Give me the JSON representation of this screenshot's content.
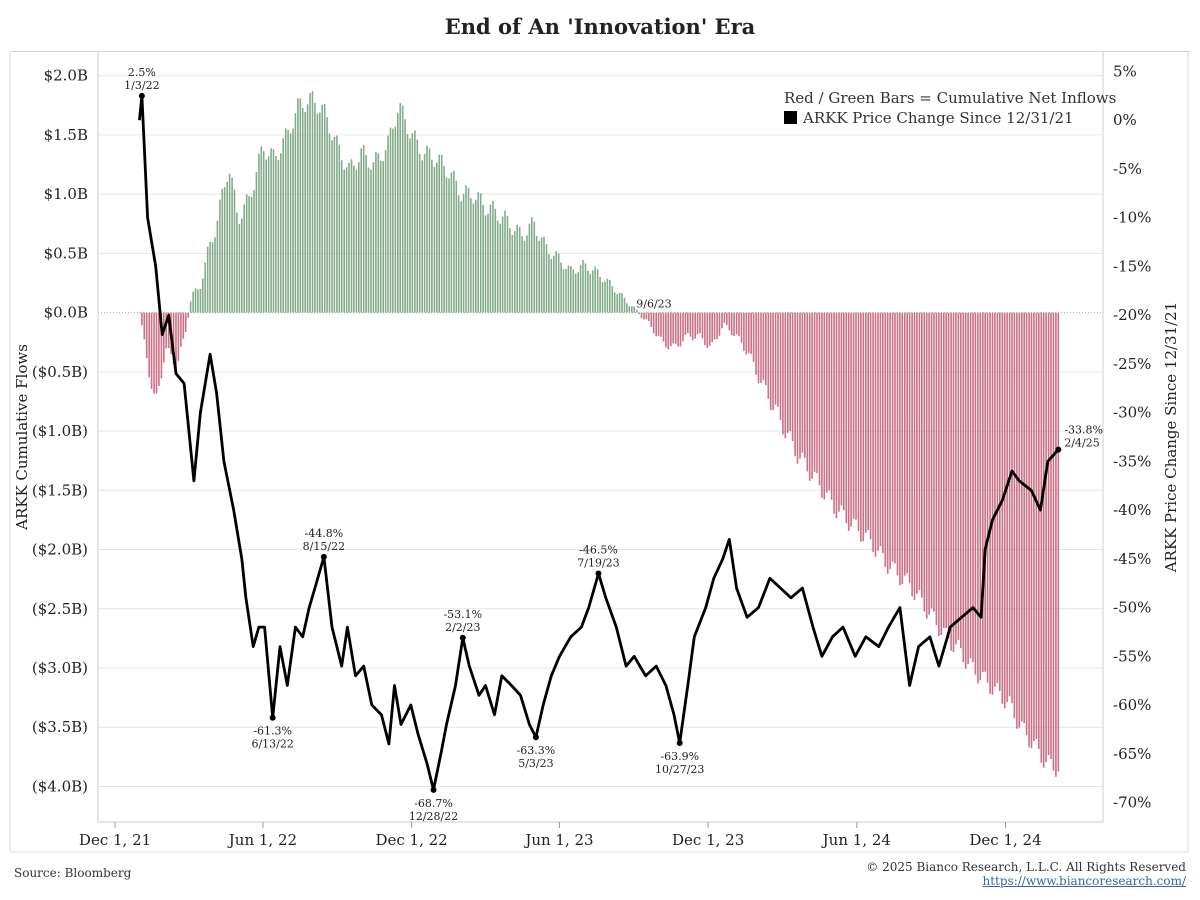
{
  "title": "End of An 'Innovation' Era",
  "footer": {
    "source": "Source: Bloomberg",
    "copyright": "© 2025 Bianco Research, L.L.C. All Rights Reserved",
    "url": "https://www.biancoresearch.com/"
  },
  "legend": {
    "bars": "Red / Green Bars = Cumulative Net Inflows",
    "line": "ARKK Price Change Since 12/31/21"
  },
  "colors": {
    "inflow": "#6f9e78",
    "outflow": "#c2566f",
    "price_line": "#000000",
    "grid": "#e6e6e6"
  },
  "chart_data": {
    "type": "bar+line",
    "title": "End of An 'Innovation' Era",
    "x_ticks": [
      "Dec 1, 21",
      "Jun 1, 22",
      "Dec 1, 22",
      "Jun 1, 23",
      "Dec 1, 23",
      "Jun 1, 24",
      "Dec 1, 24"
    ],
    "x_tick_dates": [
      "2021-12-01",
      "2022-06-01",
      "2022-12-01",
      "2023-06-01",
      "2023-12-01",
      "2024-06-01",
      "2024-12-01"
    ],
    "xlim": [
      "2021-11-10",
      "2025-03-31"
    ],
    "y_left": {
      "label": "ARKK Cumulative Flows",
      "unit": "USD billions",
      "ticks": [
        "$2.0B",
        "$1.5B",
        "$1.0B",
        "$0.5B",
        "$0.0B",
        "($0.5B)",
        "($1.0B)",
        "($1.5B)",
        "($2.0B)",
        "($2.5B)",
        "($3.0B)",
        "($3.5B)",
        "($4.0B)"
      ],
      "tick_values": [
        2.0,
        1.5,
        1.0,
        0.5,
        0.0,
        -0.5,
        -1.0,
        -1.5,
        -2.0,
        -2.5,
        -3.0,
        -3.5,
        -4.0
      ],
      "ylim": [
        -4.3,
        2.2
      ]
    },
    "y_right": {
      "label": "ARKK Price Change Since 12/31/21",
      "unit": "percent",
      "ticks": [
        "5%",
        "0%",
        "-5%",
        "-10%",
        "-15%",
        "-20%",
        "-25%",
        "-30%",
        "-35%",
        "-40%",
        "-45%",
        "-50%",
        "-55%",
        "-60%",
        "-65%",
        "-70%"
      ],
      "tick_values": [
        5,
        0,
        -5,
        -10,
        -15,
        -20,
        -25,
        -30,
        -35,
        -40,
        -45,
        -50,
        -55,
        -60,
        -65,
        -70
      ],
      "ylim": [
        -72,
        7
      ]
    },
    "series": [
      {
        "name": "Cumulative Net Inflows",
        "kind": "bar",
        "unit": "USD billions",
        "points": [
          [
            "2021-12-31",
            0.0
          ],
          [
            "2022-01-07",
            -0.3
          ],
          [
            "2022-01-20",
            -0.8
          ],
          [
            "2022-02-01",
            -0.3
          ],
          [
            "2022-02-15",
            -0.45
          ],
          [
            "2022-02-25",
            -0.2
          ],
          [
            "2022-03-05",
            0.15
          ],
          [
            "2022-03-15",
            0.2
          ],
          [
            "2022-03-25",
            0.5
          ],
          [
            "2022-04-05",
            0.75
          ],
          [
            "2022-04-20",
            1.25
          ],
          [
            "2022-05-01",
            0.8
          ],
          [
            "2022-05-15",
            0.95
          ],
          [
            "2022-06-01",
            1.4
          ],
          [
            "2022-06-15",
            1.3
          ],
          [
            "2022-07-01",
            1.5
          ],
          [
            "2022-07-15",
            1.75
          ],
          [
            "2022-08-01",
            1.8
          ],
          [
            "2022-08-15",
            1.7
          ],
          [
            "2022-09-01",
            1.4
          ],
          [
            "2022-09-15",
            1.2
          ],
          [
            "2022-10-01",
            1.35
          ],
          [
            "2022-10-15",
            1.25
          ],
          [
            "2022-11-01",
            1.4
          ],
          [
            "2022-11-15",
            1.75
          ],
          [
            "2022-12-01",
            1.5
          ],
          [
            "2022-12-15",
            1.35
          ],
          [
            "2023-01-01",
            1.3
          ],
          [
            "2023-01-15",
            1.2
          ],
          [
            "2023-02-01",
            1.0
          ],
          [
            "2023-02-15",
            1.0
          ],
          [
            "2023-03-01",
            0.9
          ],
          [
            "2023-03-15",
            0.85
          ],
          [
            "2023-04-01",
            0.75
          ],
          [
            "2023-04-15",
            0.65
          ],
          [
            "2023-05-01",
            0.75
          ],
          [
            "2023-05-15",
            0.55
          ],
          [
            "2023-06-01",
            0.45
          ],
          [
            "2023-06-15",
            0.35
          ],
          [
            "2023-07-01",
            0.4
          ],
          [
            "2023-07-15",
            0.35
          ],
          [
            "2023-08-01",
            0.25
          ],
          [
            "2023-08-15",
            0.15
          ],
          [
            "2023-09-06",
            0.0
          ],
          [
            "2023-09-20",
            -0.1
          ],
          [
            "2023-10-05",
            -0.25
          ],
          [
            "2023-10-20",
            -0.3
          ],
          [
            "2023-11-05",
            -0.2
          ],
          [
            "2023-11-20",
            -0.2
          ],
          [
            "2023-12-05",
            -0.3
          ],
          [
            "2023-12-20",
            -0.1
          ],
          [
            "2024-01-05",
            -0.2
          ],
          [
            "2024-01-20",
            -0.35
          ],
          [
            "2024-02-05",
            -0.6
          ],
          [
            "2024-02-20",
            -0.8
          ],
          [
            "2024-03-05",
            -1.0
          ],
          [
            "2024-03-20",
            -1.2
          ],
          [
            "2024-04-05",
            -1.35
          ],
          [
            "2024-04-20",
            -1.5
          ],
          [
            "2024-05-05",
            -1.65
          ],
          [
            "2024-05-20",
            -1.75
          ],
          [
            "2024-06-05",
            -1.85
          ],
          [
            "2024-06-20",
            -1.95
          ],
          [
            "2024-07-05",
            -2.1
          ],
          [
            "2024-07-20",
            -2.2
          ],
          [
            "2024-08-05",
            -2.3
          ],
          [
            "2024-08-20",
            -2.45
          ],
          [
            "2024-09-05",
            -2.6
          ],
          [
            "2024-09-20",
            -2.75
          ],
          [
            "2024-10-05",
            -2.85
          ],
          [
            "2024-10-20",
            -3.0
          ],
          [
            "2024-11-05",
            -3.1
          ],
          [
            "2024-11-20",
            -3.2
          ],
          [
            "2024-12-05",
            -3.3
          ],
          [
            "2024-12-20",
            -3.5
          ],
          [
            "2025-01-05",
            -3.65
          ],
          [
            "2025-01-20",
            -3.8
          ],
          [
            "2025-02-04",
            -3.85
          ]
        ]
      },
      {
        "name": "ARKK Price Change Since 12/31/21",
        "kind": "line",
        "unit": "percent",
        "points": [
          [
            "2021-12-31",
            0.0
          ],
          [
            "2022-01-03",
            2.5
          ],
          [
            "2022-01-10",
            -10
          ],
          [
            "2022-01-20",
            -15
          ],
          [
            "2022-01-28",
            -22
          ],
          [
            "2022-02-05",
            -20
          ],
          [
            "2022-02-14",
            -26
          ],
          [
            "2022-02-24",
            -27
          ],
          [
            "2022-03-08",
            -37
          ],
          [
            "2022-03-16",
            -30
          ],
          [
            "2022-03-28",
            -24
          ],
          [
            "2022-04-05",
            -28
          ],
          [
            "2022-04-14",
            -35
          ],
          [
            "2022-04-26",
            -40
          ],
          [
            "2022-05-06",
            -45
          ],
          [
            "2022-05-11",
            -49
          ],
          [
            "2022-05-20",
            -54
          ],
          [
            "2022-05-27",
            -52
          ],
          [
            "2022-06-03",
            -52
          ],
          [
            "2022-06-13",
            -61.3
          ],
          [
            "2022-06-22",
            -54
          ],
          [
            "2022-07-01",
            -58
          ],
          [
            "2022-07-11",
            -52
          ],
          [
            "2022-07-20",
            -53
          ],
          [
            "2022-07-28",
            -50
          ],
          [
            "2022-08-04",
            -48
          ],
          [
            "2022-08-15",
            -44.8
          ],
          [
            "2022-08-25",
            -52
          ],
          [
            "2022-09-06",
            -56
          ],
          [
            "2022-09-13",
            -52
          ],
          [
            "2022-09-23",
            -57
          ],
          [
            "2022-10-03",
            -56
          ],
          [
            "2022-10-13",
            -60
          ],
          [
            "2022-10-25",
            -61
          ],
          [
            "2022-11-03",
            -64
          ],
          [
            "2022-11-10",
            -58
          ],
          [
            "2022-11-18",
            -62
          ],
          [
            "2022-11-30",
            -60
          ],
          [
            "2022-12-09",
            -63
          ],
          [
            "2022-12-20",
            -66
          ],
          [
            "2022-12-28",
            -68.7
          ],
          [
            "2023-01-06",
            -65
          ],
          [
            "2023-01-13",
            -62
          ],
          [
            "2023-01-24",
            -58
          ],
          [
            "2023-02-02",
            -53.1
          ],
          [
            "2023-02-10",
            -56
          ],
          [
            "2023-02-22",
            -59
          ],
          [
            "2023-03-02",
            -58
          ],
          [
            "2023-03-13",
            -61
          ],
          [
            "2023-03-22",
            -57
          ],
          [
            "2023-04-03",
            -58
          ],
          [
            "2023-04-14",
            -59
          ],
          [
            "2023-04-25",
            -62
          ],
          [
            "2023-05-03",
            -63.3
          ],
          [
            "2023-05-12",
            -60
          ],
          [
            "2023-05-22",
            -57
          ],
          [
            "2023-06-01",
            -55
          ],
          [
            "2023-06-15",
            -53
          ],
          [
            "2023-06-28",
            -52
          ],
          [
            "2023-07-07",
            -50
          ],
          [
            "2023-07-19",
            -46.5
          ],
          [
            "2023-07-28",
            -49
          ],
          [
            "2023-08-10",
            -52
          ],
          [
            "2023-08-22",
            -56
          ],
          [
            "2023-09-01",
            -55
          ],
          [
            "2023-09-15",
            -57
          ],
          [
            "2023-09-28",
            -56
          ],
          [
            "2023-10-10",
            -58
          ],
          [
            "2023-10-20",
            -61
          ],
          [
            "2023-10-27",
            -63.9
          ],
          [
            "2023-11-06",
            -58
          ],
          [
            "2023-11-14",
            -53
          ],
          [
            "2023-11-28",
            -50
          ],
          [
            "2023-12-08",
            -47
          ],
          [
            "2023-12-19",
            -45
          ],
          [
            "2023-12-27",
            -43
          ],
          [
            "2024-01-05",
            -48
          ],
          [
            "2024-01-18",
            -51
          ],
          [
            "2024-02-01",
            -50
          ],
          [
            "2024-02-15",
            -47
          ],
          [
            "2024-02-28",
            -48
          ],
          [
            "2024-03-12",
            -49
          ],
          [
            "2024-03-26",
            -48
          ],
          [
            "2024-04-08",
            -52
          ],
          [
            "2024-04-19",
            -55
          ],
          [
            "2024-05-02",
            -53
          ],
          [
            "2024-05-15",
            -52
          ],
          [
            "2024-05-30",
            -55
          ],
          [
            "2024-06-12",
            -53
          ],
          [
            "2024-06-28",
            -54
          ],
          [
            "2024-07-10",
            -52
          ],
          [
            "2024-07-24",
            -50
          ],
          [
            "2024-08-05",
            -58
          ],
          [
            "2024-08-16",
            -54
          ],
          [
            "2024-08-30",
            -53
          ],
          [
            "2024-09-10",
            -56
          ],
          [
            "2024-09-24",
            -52
          ],
          [
            "2024-10-08",
            -51
          ],
          [
            "2024-10-22",
            -50
          ],
          [
            "2024-11-01",
            -51
          ],
          [
            "2024-11-06",
            -44
          ],
          [
            "2024-11-15",
            -41
          ],
          [
            "2024-11-27",
            -39
          ],
          [
            "2024-12-09",
            -36
          ],
          [
            "2024-12-18",
            -37
          ],
          [
            "2025-01-02",
            -38
          ],
          [
            "2025-01-13",
            -40
          ],
          [
            "2025-01-22",
            -35
          ],
          [
            "2025-02-04",
            -33.8
          ]
        ]
      }
    ],
    "annotations": [
      {
        "date": "2022-01-03",
        "value": 2.5,
        "label": "2.5%",
        "date_label": "1/3/22",
        "pos": "above"
      },
      {
        "date": "2022-06-13",
        "value": -61.3,
        "label": "-61.3%",
        "date_label": "6/13/22",
        "pos": "below"
      },
      {
        "date": "2022-08-15",
        "value": -44.8,
        "label": "-44.8%",
        "date_label": "8/15/22",
        "pos": "above"
      },
      {
        "date": "2022-12-28",
        "value": -68.7,
        "label": "-68.7%",
        "date_label": "12/28/22",
        "pos": "below"
      },
      {
        "date": "2023-02-02",
        "value": -53.1,
        "label": "-53.1%",
        "date_label": "2/2/23",
        "pos": "above"
      },
      {
        "date": "2023-05-03",
        "value": -63.3,
        "label": "-63.3%",
        "date_label": "5/3/23",
        "pos": "below"
      },
      {
        "date": "2023-07-19",
        "value": -46.5,
        "label": "-46.5%",
        "date_label": "7/19/23",
        "pos": "above"
      },
      {
        "date": "2023-10-27",
        "value": -63.9,
        "label": "-63.9%",
        "date_label": "10/27/23",
        "pos": "below"
      },
      {
        "date": "2025-02-04",
        "value": -33.8,
        "label": "-33.8%",
        "date_label": "2/4/25",
        "pos": "above-right"
      }
    ],
    "bar_annotations": [
      {
        "date": "2023-09-06",
        "label": "9/6/23"
      }
    ],
    "legend_position": "top-right",
    "grid": true
  }
}
